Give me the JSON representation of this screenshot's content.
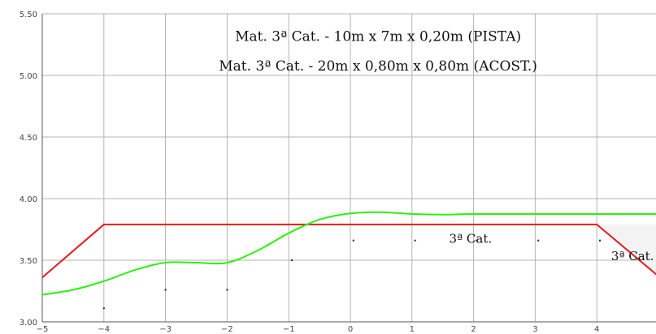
{
  "chart_data": {
    "type": "line",
    "xlim": [
      -5,
      5
    ],
    "ylim": [
      3.0,
      5.5
    ],
    "x_ticks": [
      "−5",
      "−4",
      "−3",
      "−2",
      "−1",
      "0",
      "1",
      "2",
      "3",
      "4",
      "5"
    ],
    "y_ticks": [
      "3.00",
      "3.50",
      "4.00",
      "4.50",
      "5.00",
      "5.50"
    ],
    "grid": true,
    "series": [
      {
        "color": "#e8191c",
        "x": [
          -5,
          -4,
          4,
          5
        ],
        "y": [
          3.36,
          3.79,
          3.79,
          3.37
        ]
      },
      {
        "color": "#2cf010",
        "x": [
          -5,
          -4.5,
          -4,
          -3.5,
          -3,
          -2.5,
          -2,
          -1.5,
          -1,
          -0.5,
          0,
          0.5,
          1,
          1.5,
          2,
          3,
          4,
          5
        ],
        "y": [
          3.22,
          3.26,
          3.33,
          3.42,
          3.48,
          3.48,
          3.48,
          3.58,
          3.72,
          3.83,
          3.88,
          3.89,
          3.875,
          3.87,
          3.875,
          3.875,
          3.875,
          3.875
        ]
      }
    ],
    "markers": [
      {
        "x": -4,
        "y": 3.11
      },
      {
        "x": -3,
        "y": 3.26
      },
      {
        "x": -2,
        "y": 3.26
      },
      {
        "x": -0.95,
        "y": 3.5
      },
      {
        "x": 0.05,
        "y": 3.66
      },
      {
        "x": 1.05,
        "y": 3.66
      },
      {
        "x": 2.05,
        "y": 3.66
      },
      {
        "x": 3.05,
        "y": 3.66
      },
      {
        "x": 4.05,
        "y": 3.66
      }
    ],
    "annotations": [
      {
        "id": "pista",
        "text": "Mat. 3ª Cat. - 10m x 7m x 0,20m (PISTA)",
        "x": 0.45,
        "y": 5.28
      },
      {
        "id": "acost",
        "text": "Mat. 3ª Cat. - 20m x 0,80m x 0,80m (ACOST.)",
        "x": 0.45,
        "y": 5.04
      }
    ],
    "region_labels": [
      {
        "id": "center",
        "text": "3ª Cat.",
        "x": 1.95,
        "y": 3.64
      },
      {
        "id": "right",
        "text": "3ª Cat.",
        "x": 4.58,
        "y": 3.5
      }
    ]
  }
}
